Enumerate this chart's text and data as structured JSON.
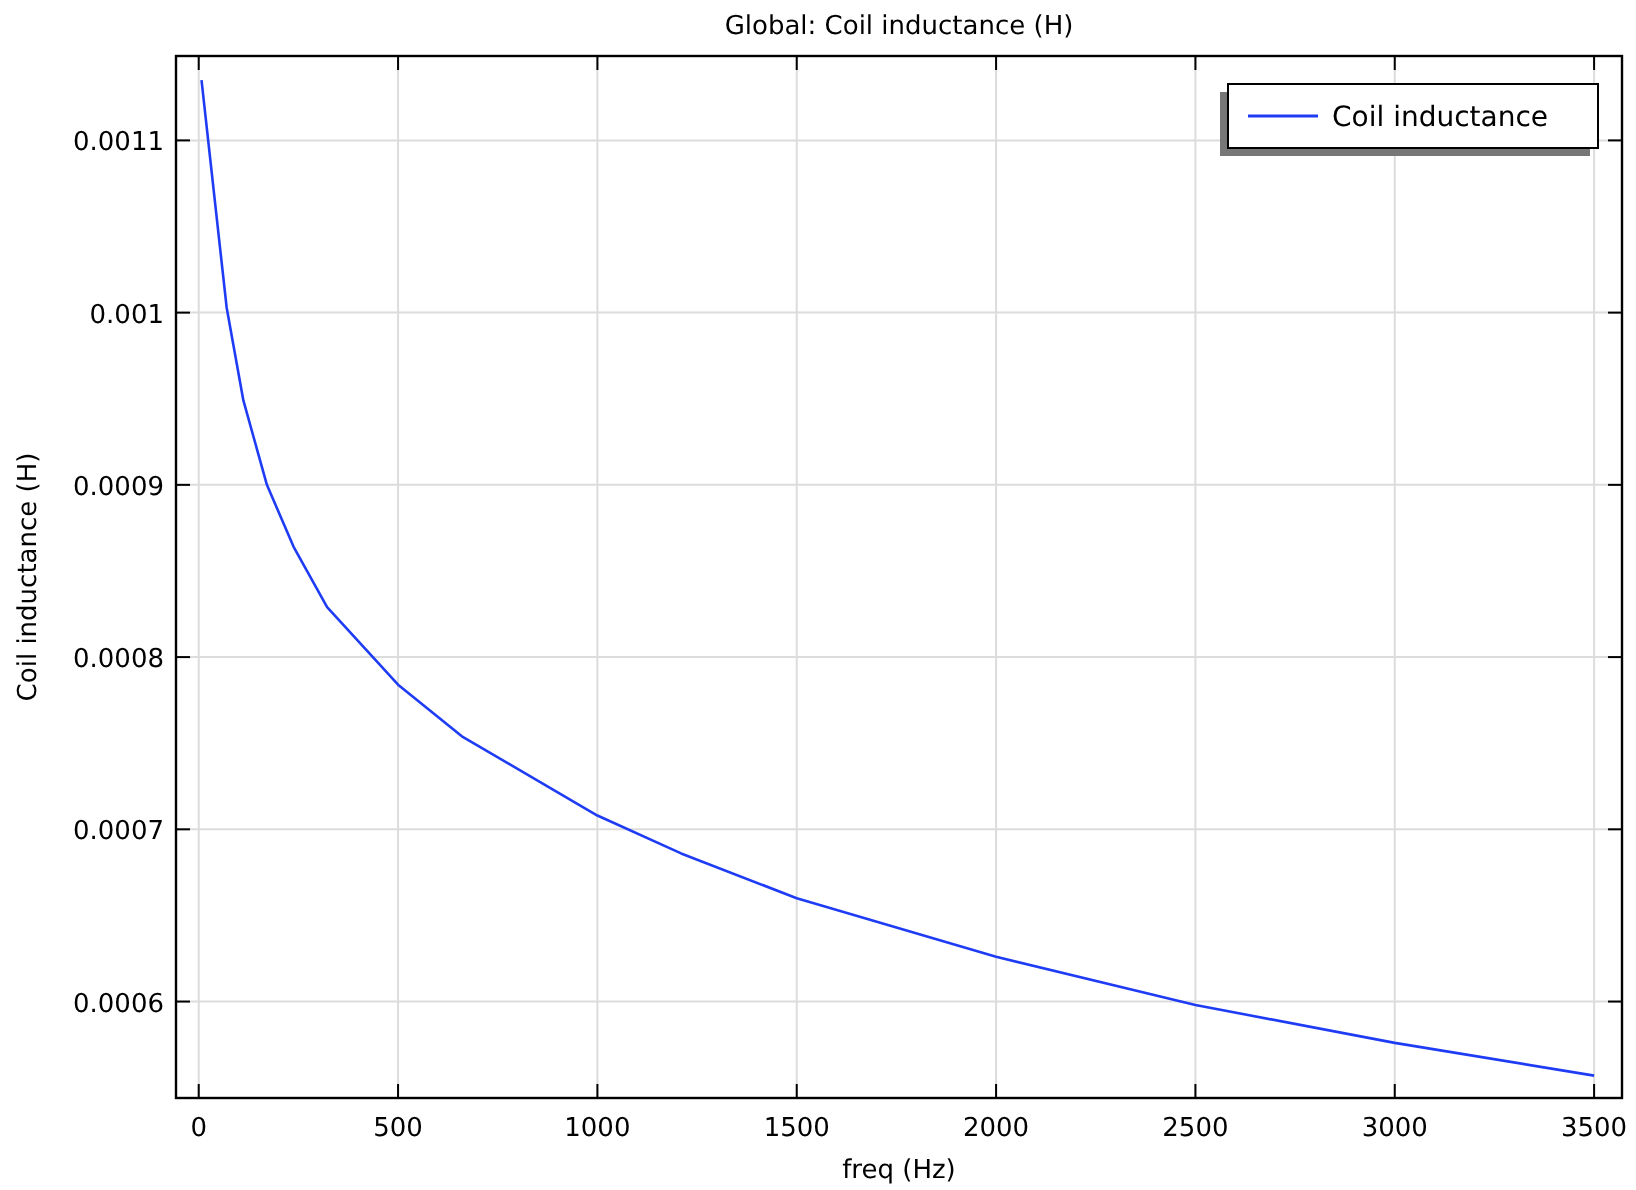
{
  "chart_data": {
    "type": "line",
    "title": "Global: Coil inductance (H)",
    "xlabel": "freq (Hz)",
    "ylabel": "Coil inductance (H)",
    "x": [
      7,
      70,
      112,
      171,
      238,
      322,
      500,
      660,
      1000,
      1210,
      1500,
      2000,
      2500,
      3000,
      3500
    ],
    "series": [
      {
        "name": "Coil inductance",
        "color": "#1f3cf5",
        "values": [
          0.001135,
          0.001003,
          0.000949,
          0.0009,
          0.000864,
          0.000829,
          0.000784,
          0.000754,
          0.000708,
          0.000686,
          0.00066,
          0.000626,
          0.000598,
          0.000576,
          0.000557
        ]
      }
    ],
    "xlim": [
      -57,
      3570
    ],
    "ylim": [
      0.000544,
      0.001149
    ],
    "xticks": [
      0,
      500,
      1000,
      1500,
      2000,
      2500,
      3000,
      3500
    ],
    "yticks": [
      0.0006,
      0.0007,
      0.0008,
      0.0009,
      0.001,
      0.0011
    ],
    "grid": true,
    "legend": "top right",
    "line_style": "solid",
    "marker": "none"
  }
}
